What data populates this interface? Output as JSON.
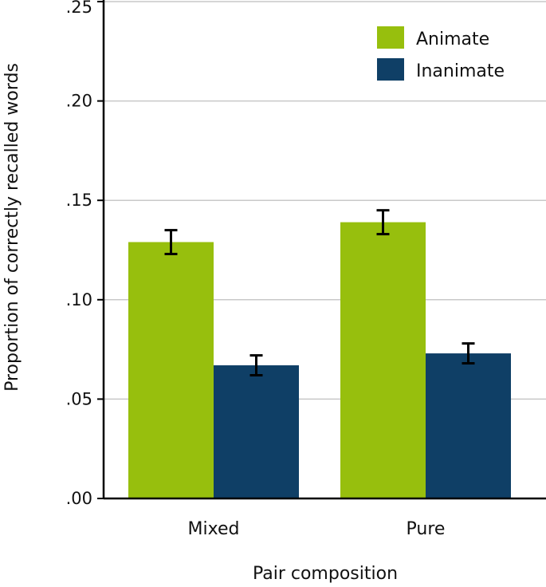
{
  "chart_data": {
    "type": "bar",
    "title": "",
    "xlabel": "Pair composition",
    "ylabel": "Proportion of correctly recalled words",
    "categories": [
      "Mixed",
      "Pure"
    ],
    "series": [
      {
        "name": "Animate",
        "color": "#97bf0d",
        "values": [
          0.129,
          0.139
        ],
        "errors": [
          0.006,
          0.006
        ]
      },
      {
        "name": "Inanimate",
        "color": "#0f3f66",
        "values": [
          0.067,
          0.073
        ],
        "errors": [
          0.005,
          0.005
        ]
      }
    ],
    "ylim": [
      0,
      0.25
    ],
    "yticks": [
      0,
      0.05,
      0.1,
      0.15,
      0.2,
      0.25
    ],
    "ytick_labels": [
      ".00",
      ".05",
      ".10",
      ".15",
      ".20",
      ".25"
    ],
    "grid": true,
    "legend_position": "top-right"
  }
}
